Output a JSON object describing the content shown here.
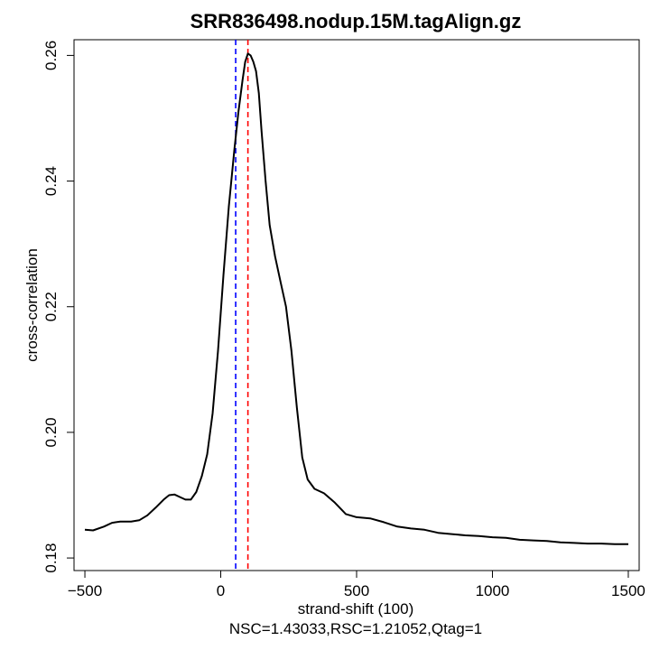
{
  "chart_data": {
    "type": "line",
    "title": "SRR836498.nodup.15M.tagAlign.gz",
    "xlabel": "strand-shift (100)",
    "ylabel": "cross-correlation",
    "subtitle": "NSC=1.43033,RSC=1.21052,Qtag=1",
    "xlim": [
      -540,
      1540
    ],
    "ylim": [
      0.178,
      0.2625
    ],
    "x_ticks": [
      -500,
      0,
      500,
      1000,
      1500
    ],
    "y_ticks": [
      0.18,
      0.2,
      0.22,
      0.24,
      0.26
    ],
    "x_tick_labels": [
      "−500",
      "0",
      "500",
      "1000",
      "1500"
    ],
    "y_tick_labels": [
      "0.18",
      "0.20",
      "0.22",
      "0.24",
      "0.26"
    ],
    "grid": false,
    "series": [
      {
        "color": "#000000",
        "points": [
          [
            -500,
            0.1845
          ],
          [
            -470,
            0.1844
          ],
          [
            -430,
            0.185
          ],
          [
            -400,
            0.1856
          ],
          [
            -370,
            0.1858
          ],
          [
            -330,
            0.1858
          ],
          [
            -300,
            0.186
          ],
          [
            -270,
            0.1868
          ],
          [
            -240,
            0.188
          ],
          [
            -210,
            0.1893
          ],
          [
            -190,
            0.19
          ],
          [
            -170,
            0.1901
          ],
          [
            -150,
            0.1897
          ],
          [
            -130,
            0.1893
          ],
          [
            -110,
            0.1893
          ],
          [
            -90,
            0.1905
          ],
          [
            -70,
            0.193
          ],
          [
            -50,
            0.1965
          ],
          [
            -30,
            0.203
          ],
          [
            -10,
            0.213
          ],
          [
            10,
            0.225
          ],
          [
            30,
            0.236
          ],
          [
            50,
            0.245
          ],
          [
            65,
            0.251
          ],
          [
            80,
            0.256
          ],
          [
            90,
            0.259
          ],
          [
            100,
            0.2603
          ],
          [
            110,
            0.26
          ],
          [
            120,
            0.259
          ],
          [
            130,
            0.2575
          ],
          [
            140,
            0.254
          ],
          [
            150,
            0.248
          ],
          [
            165,
            0.24
          ],
          [
            180,
            0.233
          ],
          [
            200,
            0.228
          ],
          [
            220,
            0.224
          ],
          [
            240,
            0.22
          ],
          [
            260,
            0.213
          ],
          [
            280,
            0.204
          ],
          [
            300,
            0.196
          ],
          [
            320,
            0.1925
          ],
          [
            345,
            0.191
          ],
          [
            380,
            0.1903
          ],
          [
            420,
            0.1888
          ],
          [
            460,
            0.187
          ],
          [
            500,
            0.1865
          ],
          [
            550,
            0.1863
          ],
          [
            600,
            0.1857
          ],
          [
            650,
            0.185
          ],
          [
            700,
            0.1847
          ],
          [
            750,
            0.1845
          ],
          [
            800,
            0.184
          ],
          [
            850,
            0.1838
          ],
          [
            900,
            0.1836
          ],
          [
            950,
            0.1835
          ],
          [
            1000,
            0.1833
          ],
          [
            1050,
            0.1832
          ],
          [
            1100,
            0.1829
          ],
          [
            1150,
            0.1828
          ],
          [
            1200,
            0.1827
          ],
          [
            1250,
            0.1825
          ],
          [
            1300,
            0.1824
          ],
          [
            1350,
            0.1823
          ],
          [
            1400,
            0.1823
          ],
          [
            1450,
            0.1822
          ],
          [
            1500,
            0.1822
          ]
        ]
      }
    ],
    "vlines": [
      {
        "x": 55,
        "color": "#0000ff",
        "dash": true
      },
      {
        "x": 100,
        "color": "#ff0000",
        "dash": true
      }
    ]
  }
}
